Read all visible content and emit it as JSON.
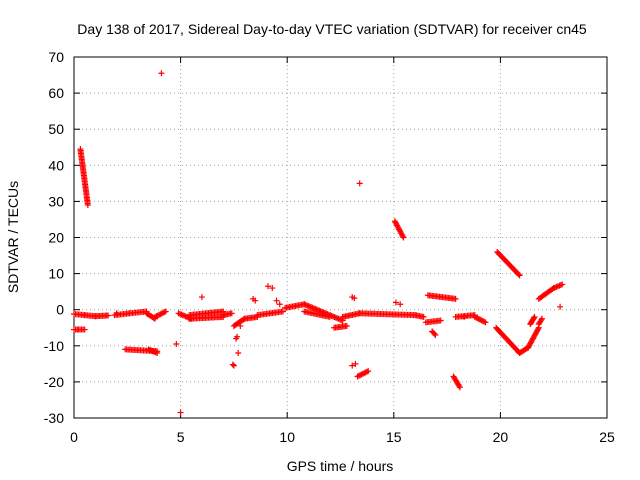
{
  "chart_data": {
    "type": "scatter",
    "title": "Day 138 of 2017, Sidereal Day-to-day VTEC variation (SDTVAR) for receiver cn45",
    "xlabel": "GPS time / hours",
    "ylabel": "SDTVAR / TECUs",
    "xlim": [
      0,
      25
    ],
    "ylim": [
      -30,
      70
    ],
    "xticks": [
      0,
      5,
      10,
      15,
      20,
      25
    ],
    "yticks": [
      -30,
      -20,
      -10,
      0,
      10,
      20,
      30,
      40,
      50,
      60,
      70
    ],
    "grid": true,
    "marker": "+",
    "marker_color": "#ff0000",
    "series": [
      {
        "name": "SDTVAR",
        "segments": [
          {
            "x": [
              0.0,
              0.5
            ],
            "y": [
              -1.2,
              -1.5
            ]
          },
          {
            "x": [
              0.5,
              1.0
            ],
            "y": [
              -1.5,
              -1.8
            ]
          },
          {
            "x": [
              1.0,
              1.6
            ],
            "y": [
              -1.8,
              -1.6
            ]
          },
          {
            "x": [
              1.9,
              2.6
            ],
            "y": [
              -1.5,
              -1.0
            ]
          },
          {
            "x": [
              2.6,
              3.4
            ],
            "y": [
              -1.0,
              -0.5
            ]
          },
          {
            "x": [
              3.4,
              3.8
            ],
            "y": [
              -1.0,
              -2.5
            ]
          },
          {
            "x": [
              3.8,
              4.3
            ],
            "y": [
              -2.0,
              -0.5
            ]
          },
          {
            "x": [
              4.9,
              5.5
            ],
            "y": [
              -1.0,
              -2.5
            ]
          },
          {
            "x": [
              5.4,
              7.0
            ],
            "y": [
              -2.5,
              -2.0
            ]
          },
          {
            "x": [
              5.4,
              7.0
            ],
            "y": [
              -1.5,
              -0.5
            ]
          },
          {
            "x": [
              7.0,
              7.4
            ],
            "y": [
              -1.5,
              -1.0
            ]
          },
          {
            "x": [
              7.5,
              8.0
            ],
            "y": [
              -4.5,
              -2.5
            ]
          },
          {
            "x": [
              8.0,
              8.6
            ],
            "y": [
              -2.5,
              -2.0
            ]
          },
          {
            "x": [
              8.6,
              9.8
            ],
            "y": [
              -1.5,
              -0.5
            ]
          },
          {
            "x": [
              9.9,
              10.8
            ],
            "y": [
              0.5,
              1.5
            ]
          },
          {
            "x": [
              10.8,
              12.6
            ],
            "y": [
              1.5,
              -3.0
            ]
          },
          {
            "x": [
              10.8,
              12.0
            ],
            "y": [
              -0.5,
              -2.0
            ]
          },
          {
            "x": [
              12.6,
              13.4
            ],
            "y": [
              -2.0,
              -1.0
            ]
          },
          {
            "x": [
              13.4,
              16.0
            ],
            "y": [
              -1.0,
              -1.5
            ]
          },
          {
            "x": [
              16.0,
              16.4
            ],
            "y": [
              -1.5,
              -2.0
            ]
          },
          {
            "x": [
              16.5,
              17.2
            ],
            "y": [
              -3.5,
              -3.0
            ]
          },
          {
            "x": [
              16.6,
              17.9
            ],
            "y": [
              4.0,
              3.0
            ]
          },
          {
            "x": [
              17.9,
              18.8
            ],
            "y": [
              -2.0,
              -1.5
            ]
          },
          {
            "x": [
              18.8,
              19.3
            ],
            "y": [
              -2.0,
              -3.5
            ]
          },
          {
            "x": [
              0.0,
              0.5
            ],
            "y": [
              -5.5,
              -5.5
            ]
          },
          {
            "x": [
              0.3,
              0.65
            ],
            "y": [
              44.5,
              29.0
            ]
          },
          {
            "x": [
              2.4,
              3.9
            ],
            "y": [
              -11.0,
              -11.5
            ]
          },
          {
            "x": [
              3.5,
              3.9
            ],
            "y": [
              -11.0,
              -12.0
            ]
          },
          {
            "x": [
              12.2,
              12.8
            ],
            "y": [
              -5.0,
              -4.5
            ]
          },
          {
            "x": [
              13.3,
              13.8
            ],
            "y": [
              -18.5,
              -17.0
            ]
          },
          {
            "x": [
              15.05,
              15.45
            ],
            "y": [
              24.5,
              20.0
            ]
          },
          {
            "x": [
              16.8,
              16.95
            ],
            "y": [
              -6.0,
              -7.0
            ]
          },
          {
            "x": [
              17.8,
              18.1
            ],
            "y": [
              -18.5,
              -21.5
            ]
          },
          {
            "x": [
              19.85,
              20.9
            ],
            "y": [
              16.0,
              9.5
            ]
          },
          {
            "x": [
              19.8,
              20.9
            ],
            "y": [
              -5.0,
              -12.0
            ]
          },
          {
            "x": [
              20.9,
              21.3
            ],
            "y": [
              -12.0,
              -10.5
            ]
          },
          {
            "x": [
              21.3,
              21.8
            ],
            "y": [
              -10.5,
              -5.0
            ]
          },
          {
            "x": [
              21.4,
              21.6
            ],
            "y": [
              -4.0,
              -2.0
            ]
          },
          {
            "x": [
              21.8,
              21.95
            ],
            "y": [
              -4.0,
              -2.5
            ]
          },
          {
            "x": [
              21.8,
              22.5
            ],
            "y": [
              3.0,
              6.0
            ]
          },
          {
            "x": [
              22.5,
              22.9
            ],
            "y": [
              6.0,
              7.0
            ]
          }
        ],
        "points": [
          {
            "x": 4.1,
            "y": 65.5
          },
          {
            "x": 13.4,
            "y": 35.0
          },
          {
            "x": 4.8,
            "y": -9.5
          },
          {
            "x": 5.0,
            "y": -28.5
          },
          {
            "x": 6.0,
            "y": 3.5
          },
          {
            "x": 7.7,
            "y": -12.0
          },
          {
            "x": 7.5,
            "y": -15.5
          },
          {
            "x": 7.45,
            "y": -15.2
          },
          {
            "x": 7.6,
            "y": -8.0
          },
          {
            "x": 7.65,
            "y": -7.5
          },
          {
            "x": 7.8,
            "y": -4.5
          },
          {
            "x": 8.4,
            "y": 3.0
          },
          {
            "x": 8.5,
            "y": 2.5
          },
          {
            "x": 9.1,
            "y": 6.5
          },
          {
            "x": 9.3,
            "y": 6.0
          },
          {
            "x": 9.5,
            "y": 2.5
          },
          {
            "x": 9.65,
            "y": 1.5
          },
          {
            "x": 13.05,
            "y": 3.5
          },
          {
            "x": 13.15,
            "y": 3.2
          },
          {
            "x": 13.05,
            "y": -15.5
          },
          {
            "x": 13.2,
            "y": -15.0
          },
          {
            "x": 15.1,
            "y": 2.0
          },
          {
            "x": 15.3,
            "y": 1.5
          },
          {
            "x": 18.3,
            "y": -2.0
          },
          {
            "x": 22.8,
            "y": 0.8
          },
          {
            "x": 0.2,
            "y": -5.5
          },
          {
            "x": 2.0,
            "y": -1.0
          }
        ]
      }
    ]
  }
}
